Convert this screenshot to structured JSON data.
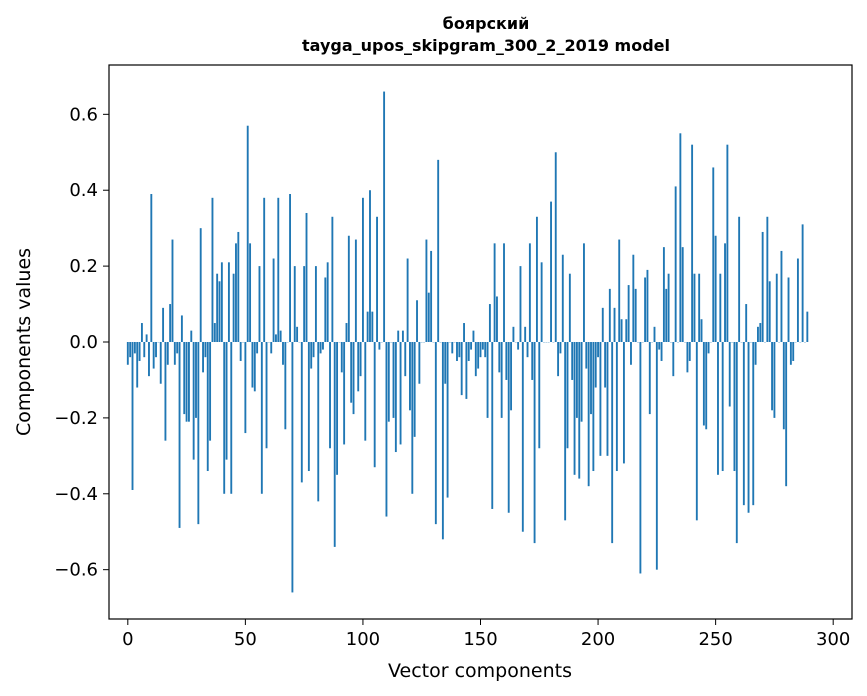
{
  "chart_data": {
    "type": "bar",
    "title_line1": "боярский",
    "title_line2": "tayga_upos_skipgram_300_2_2019 model",
    "xlabel": "Vector components",
    "ylabel": "Components values",
    "xlim": [
      -8,
      308
    ],
    "ylim": [
      -0.73,
      0.73
    ],
    "x_ticks": [
      0,
      50,
      100,
      150,
      200,
      250,
      300
    ],
    "x_tick_labels": [
      "0",
      "50",
      "100",
      "150",
      "200",
      "250",
      "300"
    ],
    "y_ticks": [
      -0.6,
      -0.4,
      -0.2,
      0.0,
      0.2,
      0.4,
      0.6
    ],
    "y_tick_labels": [
      "−0.6",
      "−0.4",
      "−0.2",
      "0.0",
      "0.2",
      "0.4",
      "0.6"
    ],
    "bar_color": "#1f77b4",
    "grid": false,
    "values": [
      -0.06,
      -0.04,
      -0.39,
      -0.03,
      -0.12,
      -0.05,
      0.05,
      -0.04,
      0.02,
      -0.09,
      0.39,
      -0.07,
      -0.04,
      0.0,
      -0.11,
      0.09,
      -0.26,
      -0.06,
      0.1,
      0.27,
      -0.06,
      -0.03,
      -0.49,
      0.07,
      -0.19,
      -0.21,
      -0.21,
      0.03,
      -0.31,
      -0.2,
      -0.48,
      0.3,
      -0.08,
      -0.04,
      -0.34,
      -0.26,
      0.38,
      0.05,
      0.18,
      0.16,
      0.21,
      -0.4,
      -0.31,
      0.21,
      -0.4,
      0.18,
      0.26,
      0.29,
      -0.05,
      0.0,
      -0.24,
      0.57,
      0.26,
      -0.12,
      -0.13,
      -0.03,
      0.2,
      -0.4,
      0.38,
      -0.28,
      0.0,
      -0.03,
      0.22,
      0.02,
      0.38,
      0.03,
      -0.06,
      -0.23,
      0.0,
      0.39,
      -0.66,
      0.2,
      0.04,
      0.0,
      -0.37,
      0.2,
      0.34,
      -0.34,
      -0.07,
      -0.04,
      0.2,
      -0.42,
      -0.03,
      -0.02,
      0.17,
      0.21,
      -0.28,
      0.33,
      -0.54,
      -0.35,
      0.0,
      -0.08,
      -0.27,
      0.05,
      0.28,
      -0.16,
      -0.19,
      0.27,
      -0.13,
      -0.09,
      0.38,
      -0.26,
      0.08,
      0.4,
      0.08,
      -0.33,
      0.33,
      -0.02,
      0.0,
      0.66,
      -0.46,
      -0.21,
      0.0,
      -0.2,
      -0.29,
      0.03,
      -0.27,
      0.03,
      -0.09,
      0.22,
      -0.18,
      -0.4,
      -0.25,
      0.11,
      -0.11,
      0.0,
      0.0,
      0.27,
      0.13,
      0.24,
      0.0,
      -0.48,
      0.48,
      0.0,
      -0.52,
      -0.11,
      -0.41,
      0.0,
      -0.03,
      0.0,
      -0.05,
      -0.04,
      -0.14,
      0.05,
      -0.15,
      -0.05,
      -0.02,
      0.03,
      -0.09,
      -0.07,
      -0.04,
      -0.02,
      -0.04,
      -0.2,
      0.1,
      -0.44,
      0.26,
      0.12,
      -0.08,
      -0.2,
      0.26,
      -0.1,
      -0.45,
      -0.18,
      0.04,
      0.0,
      -0.02,
      0.2,
      -0.5,
      0.04,
      -0.04,
      0.26,
      -0.1,
      -0.53,
      0.33,
      -0.28,
      0.21,
      0.0,
      0.0,
      0.0,
      0.37,
      0.0,
      0.5,
      -0.09,
      -0.03,
      0.23,
      -0.47,
      -0.28,
      0.18,
      -0.1,
      -0.35,
      -0.2,
      -0.36,
      -0.21,
      0.26,
      -0.07,
      -0.38,
      -0.19,
      -0.34,
      -0.12,
      -0.04,
      -0.3,
      0.09,
      -0.12,
      -0.3,
      0.14,
      -0.53,
      0.09,
      -0.34,
      0.27,
      0.06,
      -0.32,
      0.06,
      0.15,
      -0.06,
      0.23,
      0.14,
      0.0,
      -0.61,
      0.0,
      0.17,
      0.19,
      -0.19,
      0.0,
      0.04,
      -0.6,
      -0.02,
      -0.05,
      0.25,
      0.14,
      0.18,
      0.0,
      -0.09,
      0.41,
      0.0,
      0.55,
      0.25,
      0.0,
      -0.08,
      -0.05,
      0.52,
      0.18,
      -0.47,
      0.18,
      0.06,
      -0.22,
      -0.23,
      -0.03,
      0.0,
      0.46,
      0.28,
      -0.35,
      0.18,
      -0.34,
      0.26,
      0.52,
      -0.17,
      0.0,
      -0.34,
      -0.53,
      0.33,
      0.0,
      -0.43,
      0.1,
      -0.45,
      0.0,
      -0.43,
      -0.06,
      0.04,
      0.05,
      0.29,
      0.0,
      0.33,
      0.16,
      -0.18,
      -0.2,
      0.18,
      0.0,
      0.24,
      -0.23,
      -0.38,
      0.17,
      -0.06,
      -0.05,
      0.0,
      0.22,
      0.0,
      0.31,
      0.0,
      0.08
    ]
  }
}
